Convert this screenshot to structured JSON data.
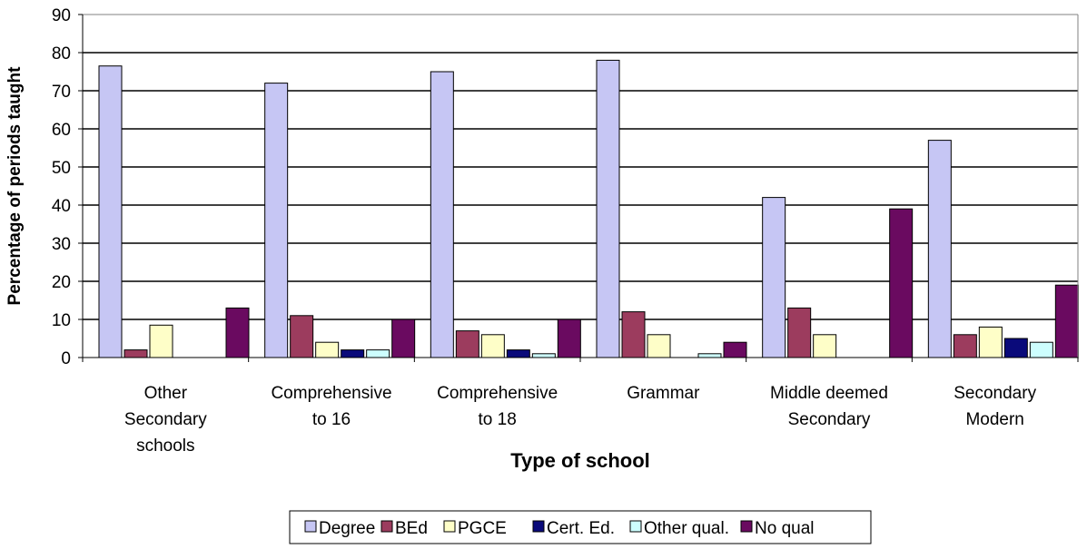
{
  "chart_data": {
    "type": "bar",
    "categories": [
      [
        "Other",
        "Secondary",
        "schools"
      ],
      [
        "Comprehensive",
        "to 16"
      ],
      [
        "Comprehensive",
        "to 18"
      ],
      [
        "Grammar"
      ],
      [
        "Middle deemed",
        "Secondary"
      ],
      [
        "Secondary",
        "Modern"
      ]
    ],
    "series": [
      {
        "name": "Degree",
        "color": "#c6c6f4",
        "values": [
          76.5,
          72,
          75,
          78,
          42,
          57
        ]
      },
      {
        "name": "BEd",
        "color": "#9c3c5e",
        "values": [
          2,
          11,
          7,
          12,
          13,
          6
        ]
      },
      {
        "name": "PGCE",
        "color": "#fefec8",
        "values": [
          8.5,
          4,
          6,
          6,
          6,
          8
        ]
      },
      {
        "name": "Cert. Ed.",
        "color": "#0a0a7a",
        "values": [
          0,
          2,
          2,
          0,
          0,
          5
        ]
      },
      {
        "name": "Other qual.",
        "color": "#cdfefe",
        "values": [
          0,
          2,
          1,
          1,
          0,
          4
        ]
      },
      {
        "name": "No qual",
        "color": "#6a0a60",
        "values": [
          13,
          10,
          10,
          4,
          39,
          19
        ]
      }
    ],
    "xlabel": "Type of school",
    "ylabel": "Percentage of periods taught",
    "ylim": [
      0,
      90
    ],
    "yticks": [
      "0",
      "10",
      "20",
      "30",
      "40",
      "50",
      "60",
      "70",
      "80",
      "90"
    ],
    "grid": true,
    "legend_position": "bottom"
  }
}
